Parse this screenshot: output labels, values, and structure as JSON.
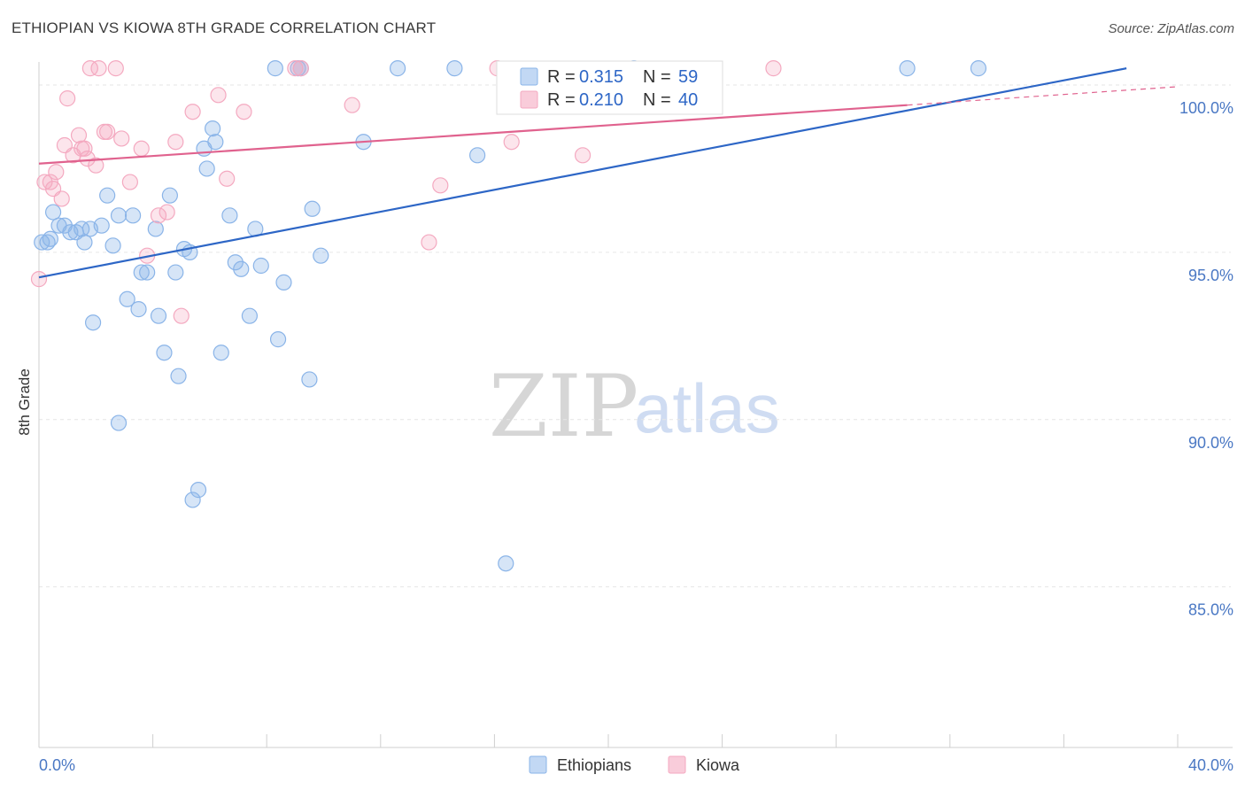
{
  "title": "ETHIOPIAN VS KIOWA 8TH GRADE CORRELATION CHART",
  "source": "Source: ZipAtlas.com",
  "chart_data": {
    "type": "scatter",
    "title": "ETHIOPIAN VS KIOWA 8TH GRADE CORRELATION CHART",
    "xlabel": "",
    "ylabel": "8th Grade",
    "xlim": [
      0,
      40
    ],
    "ylim": [
      80.2,
      100.9
    ],
    "x_tick_labels": [
      "0.0%",
      "40.0%"
    ],
    "y_ticks": [
      85,
      90,
      95,
      100
    ],
    "y_tick_labels": [
      "85.0%",
      "90.0%",
      "95.0%",
      "100.0%"
    ],
    "grid": true,
    "legend_placement": "top-center",
    "series": [
      {
        "name": "Ethiopians",
        "color": "#8ab4e8",
        "line_color": "#2d66c6",
        "R": "0.315",
        "N": "59",
        "trend": {
          "x": [
            0,
            38.2
          ],
          "y": [
            94.25,
            100.5
          ]
        },
        "trend_dashed": null,
        "points": [
          [
            0.1,
            95.3
          ],
          [
            0.3,
            95.3
          ],
          [
            0.5,
            96.2
          ],
          [
            0.7,
            95.8
          ],
          [
            0.9,
            95.8
          ],
          [
            1.1,
            95.6
          ],
          [
            1.5,
            95.7
          ],
          [
            1.6,
            95.3
          ],
          [
            1.8,
            95.7
          ],
          [
            2.2,
            95.8
          ],
          [
            2.4,
            96.7
          ],
          [
            2.6,
            95.2
          ],
          [
            2.8,
            96.1
          ],
          [
            3.1,
            93.6
          ],
          [
            3.3,
            96.1
          ],
          [
            3.5,
            93.3
          ],
          [
            3.6,
            94.4
          ],
          [
            3.8,
            94.4
          ],
          [
            4.1,
            95.7
          ],
          [
            4.2,
            93.1
          ],
          [
            4.4,
            92.0
          ],
          [
            4.6,
            96.7
          ],
          [
            4.8,
            94.4
          ],
          [
            4.9,
            91.3
          ],
          [
            5.1,
            95.1
          ],
          [
            5.3,
            95.0
          ],
          [
            5.6,
            87.9
          ],
          [
            5.8,
            98.1
          ],
          [
            5.9,
            97.5
          ],
          [
            6.1,
            98.7
          ],
          [
            6.2,
            98.3
          ],
          [
            6.4,
            92.0
          ],
          [
            6.7,
            96.1
          ],
          [
            6.9,
            94.7
          ],
          [
            7.1,
            94.5
          ],
          [
            7.4,
            93.1
          ],
          [
            7.6,
            95.7
          ],
          [
            7.8,
            94.6
          ],
          [
            1.9,
            92.9
          ],
          [
            2.8,
            89.9
          ],
          [
            5.4,
            87.6
          ],
          [
            8.4,
            92.4
          ],
          [
            8.6,
            94.1
          ],
          [
            9.2,
            100.5
          ],
          [
            9.5,
            91.2
          ],
          [
            9.6,
            96.3
          ],
          [
            9.9,
            94.9
          ],
          [
            11.4,
            98.3
          ],
          [
            12.6,
            100.5
          ],
          [
            14.6,
            100.5
          ],
          [
            15.4,
            97.9
          ],
          [
            16.4,
            85.7
          ],
          [
            20.9,
            100.5
          ],
          [
            30.5,
            100.5
          ],
          [
            33.0,
            100.5
          ],
          [
            8.3,
            100.5
          ],
          [
            9.1,
            100.5
          ],
          [
            1.3,
            95.6
          ],
          [
            0.4,
            95.4
          ]
        ]
      },
      {
        "name": "Kiowa",
        "color": "#f4a9c0",
        "line_color": "#e0628e",
        "R": "0.210",
        "N": "40",
        "trend": {
          "x": [
            0,
            30.5
          ],
          "y": [
            97.65,
            99.4
          ]
        },
        "trend_dashed": {
          "x": [
            30.5,
            40
          ],
          "y": [
            99.4,
            99.95
          ]
        },
        "points": [
          [
            0.0,
            94.2
          ],
          [
            0.2,
            97.1
          ],
          [
            0.4,
            97.1
          ],
          [
            0.6,
            97.4
          ],
          [
            0.8,
            96.6
          ],
          [
            0.9,
            98.2
          ],
          [
            1.0,
            99.6
          ],
          [
            1.2,
            97.9
          ],
          [
            1.4,
            98.5
          ],
          [
            1.5,
            98.1
          ],
          [
            1.6,
            98.1
          ],
          [
            1.7,
            97.8
          ],
          [
            1.8,
            100.5
          ],
          [
            2.0,
            97.6
          ],
          [
            2.1,
            100.5
          ],
          [
            2.3,
            98.6
          ],
          [
            2.4,
            98.6
          ],
          [
            2.7,
            100.5
          ],
          [
            2.9,
            98.4
          ],
          [
            3.2,
            97.1
          ],
          [
            3.6,
            98.1
          ],
          [
            3.8,
            94.9
          ],
          [
            4.2,
            96.1
          ],
          [
            4.5,
            96.2
          ],
          [
            4.8,
            98.3
          ],
          [
            5.0,
            93.1
          ],
          [
            5.4,
            99.2
          ],
          [
            6.3,
            99.7
          ],
          [
            6.6,
            97.2
          ],
          [
            7.2,
            99.2
          ],
          [
            9.2,
            100.5
          ],
          [
            11.0,
            99.4
          ],
          [
            13.7,
            95.3
          ],
          [
            14.1,
            97.0
          ],
          [
            16.1,
            100.5
          ],
          [
            16.6,
            98.3
          ],
          [
            19.1,
            97.9
          ],
          [
            25.8,
            100.5
          ],
          [
            0.5,
            96.9
          ],
          [
            9.0,
            100.5
          ]
        ]
      }
    ]
  },
  "legend": [
    {
      "name": "Ethiopians"
    },
    {
      "name": "Kiowa"
    }
  ],
  "stats_labels": {
    "r_label": "R =",
    "n_label": "N ="
  },
  "watermark": {
    "zip": "ZIP",
    "atlas": "atlas"
  }
}
